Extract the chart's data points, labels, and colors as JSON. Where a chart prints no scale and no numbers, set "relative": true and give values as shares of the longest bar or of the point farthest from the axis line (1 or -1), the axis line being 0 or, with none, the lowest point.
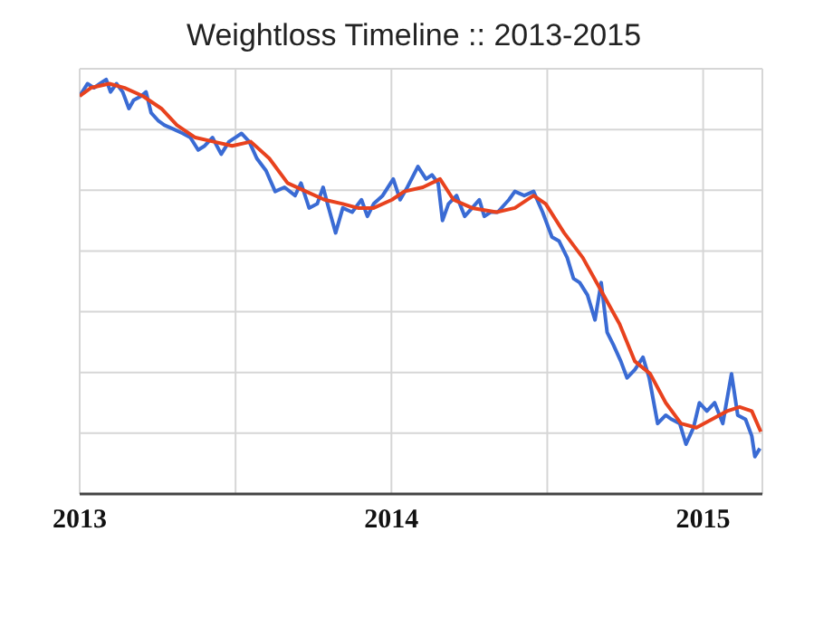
{
  "chart_data": {
    "type": "line",
    "title": "Weightloss Timeline :: 2013-2015",
    "relative": true,
    "grid": true,
    "xlim": [
      2013,
      2015.19
    ],
    "xticks": [
      2013,
      {
        "value": 2013.5,
        "label": null
      },
      2014,
      {
        "value": 2014.5,
        "label": null
      },
      2015
    ],
    "series": [
      {
        "color": "#3a6bd4",
        "x": [
          2013.0,
          2013.025,
          2013.046,
          2013.065,
          2013.085,
          2013.099,
          2013.118,
          2013.138,
          2013.158,
          2013.173,
          2013.197,
          2013.213,
          2013.229,
          2013.253,
          2013.272,
          2013.302,
          2013.331,
          2013.355,
          2013.38,
          2013.401,
          2013.426,
          2013.454,
          2013.479,
          2013.499,
          2013.519,
          2013.544,
          2013.568,
          2013.598,
          2013.627,
          2013.657,
          2013.691,
          2013.71,
          2013.736,
          2013.762,
          2013.781,
          2013.795,
          2013.821,
          2013.844,
          2013.874,
          2013.904,
          2013.923,
          2013.943,
          2013.972,
          2014.006,
          2014.028,
          2014.051,
          2014.085,
          2014.111,
          2014.13,
          2014.15,
          2014.164,
          2014.183,
          2014.209,
          2014.235,
          2014.259,
          2014.282,
          2014.298,
          2014.318,
          2014.341,
          2014.377,
          2014.396,
          2014.426,
          2014.456,
          2014.485,
          2014.515,
          2014.538,
          2014.564,
          2014.584,
          2014.604,
          2014.629,
          2014.653,
          2014.673,
          2014.692,
          2014.712,
          2014.736,
          2014.756,
          2014.781,
          2014.807,
          2014.827,
          2014.854,
          2014.88,
          2014.899,
          2014.925,
          2014.945,
          2014.969,
          2014.988,
          2015.012,
          2015.037,
          2015.063,
          2015.091,
          2015.111,
          2015.136,
          2015.156,
          2015.166,
          2015.182
        ],
        "values": [
          0.96,
          0.99,
          0.98,
          0.99,
          1.0,
          0.97,
          0.99,
          0.97,
          0.93,
          0.95,
          0.96,
          0.97,
          0.92,
          0.9,
          0.89,
          0.88,
          0.87,
          0.86,
          0.83,
          0.84,
          0.86,
          0.82,
          0.85,
          0.86,
          0.87,
          0.85,
          0.81,
          0.78,
          0.73,
          0.74,
          0.72,
          0.75,
          0.69,
          0.7,
          0.74,
          0.7,
          0.63,
          0.69,
          0.68,
          0.71,
          0.67,
          0.7,
          0.72,
          0.76,
          0.71,
          0.74,
          0.79,
          0.76,
          0.77,
          0.75,
          0.66,
          0.7,
          0.72,
          0.67,
          0.69,
          0.71,
          0.67,
          0.68,
          0.68,
          0.71,
          0.73,
          0.72,
          0.73,
          0.68,
          0.62,
          0.61,
          0.57,
          0.52,
          0.51,
          0.48,
          0.42,
          0.51,
          0.39,
          0.36,
          0.32,
          0.28,
          0.3,
          0.33,
          0.28,
          0.17,
          0.19,
          0.18,
          0.17,
          0.12,
          0.16,
          0.22,
          0.2,
          0.22,
          0.17,
          0.29,
          0.19,
          0.18,
          0.14,
          0.09,
          0.11
        ]
      },
      {
        "color": "#e8421e",
        "x": [
          2013.0,
          2013.036,
          2013.095,
          2013.144,
          2013.203,
          2013.262,
          2013.312,
          2013.371,
          2013.43,
          2013.489,
          2013.549,
          2013.608,
          2013.667,
          2013.726,
          2013.785,
          2013.844,
          2013.893,
          2013.943,
          2014.002,
          2014.041,
          2014.101,
          2014.156,
          2014.199,
          2014.259,
          2014.337,
          2014.396,
          2014.456,
          2014.495,
          2014.554,
          2014.614,
          2014.673,
          2014.732,
          2014.781,
          2014.83,
          2014.88,
          2014.929,
          2014.978,
          2015.028,
          2015.077,
          2015.117,
          2015.156,
          2015.185
        ],
        "values": [
          0.96,
          0.98,
          0.99,
          0.98,
          0.96,
          0.93,
          0.89,
          0.86,
          0.85,
          0.84,
          0.85,
          0.81,
          0.75,
          0.73,
          0.71,
          0.7,
          0.69,
          0.69,
          0.71,
          0.73,
          0.74,
          0.76,
          0.71,
          0.69,
          0.68,
          0.69,
          0.72,
          0.7,
          0.63,
          0.57,
          0.49,
          0.41,
          0.32,
          0.29,
          0.22,
          0.17,
          0.16,
          0.18,
          0.2,
          0.21,
          0.2,
          0.15
        ]
      }
    ]
  }
}
